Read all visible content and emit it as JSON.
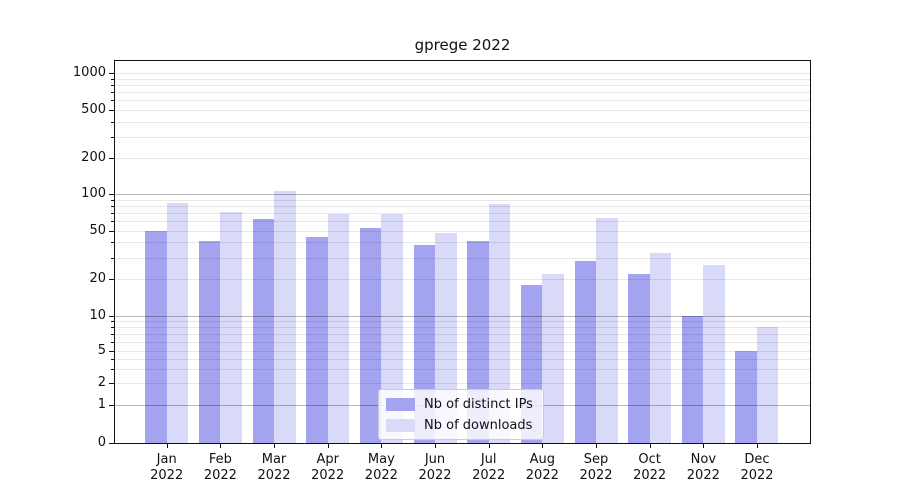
{
  "figure": {
    "title": "gprege 2022"
  },
  "chart_data": {
    "type": "bar",
    "title": "gprege 2022",
    "categories": [
      "Jan",
      "Feb",
      "Mar",
      "Apr",
      "May",
      "Jun",
      "Jul",
      "Aug",
      "Sep",
      "Oct",
      "Nov",
      "Dec"
    ],
    "year_label": "2022",
    "series": [
      {
        "name": "Nb of distinct IPs",
        "color": "#a3a3f0",
        "values": [
          50,
          41,
          62,
          44,
          52,
          38,
          41,
          18,
          28,
          22,
          10,
          5
        ]
      },
      {
        "name": "Nb of downloads",
        "color": "#d9d9f8",
        "values": [
          85,
          71,
          106,
          68,
          69,
          48,
          82,
          22,
          64,
          33,
          26,
          8
        ]
      }
    ],
    "xlabel": "",
    "ylabel": "",
    "yscale": "log above 1, linear segment 0-1 (symlog-style)",
    "ylim": [
      0,
      1300
    ],
    "yticks": [
      1000,
      500,
      200,
      100,
      50,
      20,
      10,
      5,
      2,
      1,
      0
    ],
    "ytick_labels": [
      "1000",
      "500",
      "200",
      "100",
      "50",
      "20",
      "10",
      "5",
      "2",
      "1",
      "0"
    ],
    "grid": true,
    "legend_position": "lower center"
  }
}
